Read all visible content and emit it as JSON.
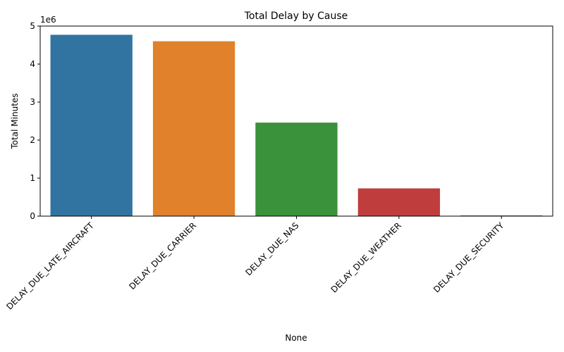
{
  "chart_data": {
    "type": "bar",
    "title": "Total Delay by Cause",
    "xlabel": "None",
    "ylabel": "Total Minutes",
    "y_offset_label": "1e6",
    "categories": [
      "DELAY_DUE_LATE_AIRCRAFT",
      "DELAY_DUE_CARRIER",
      "DELAY_DUE_NAS",
      "DELAY_DUE_WEATHER",
      "DELAY_DUE_SECURITY"
    ],
    "values": [
      4770000,
      4600000,
      2460000,
      730000,
      20000
    ],
    "colors": [
      "#3274a1",
      "#e1812c",
      "#3a923a",
      "#c03d3e",
      "#9372b2"
    ],
    "ylim": [
      0,
      5000000
    ],
    "yticks": [
      0,
      1000000,
      2000000,
      3000000,
      4000000,
      5000000
    ],
    "ytick_labels": [
      "0",
      "1",
      "2",
      "3",
      "4",
      "5"
    ],
    "grid": false,
    "legend": "none"
  }
}
